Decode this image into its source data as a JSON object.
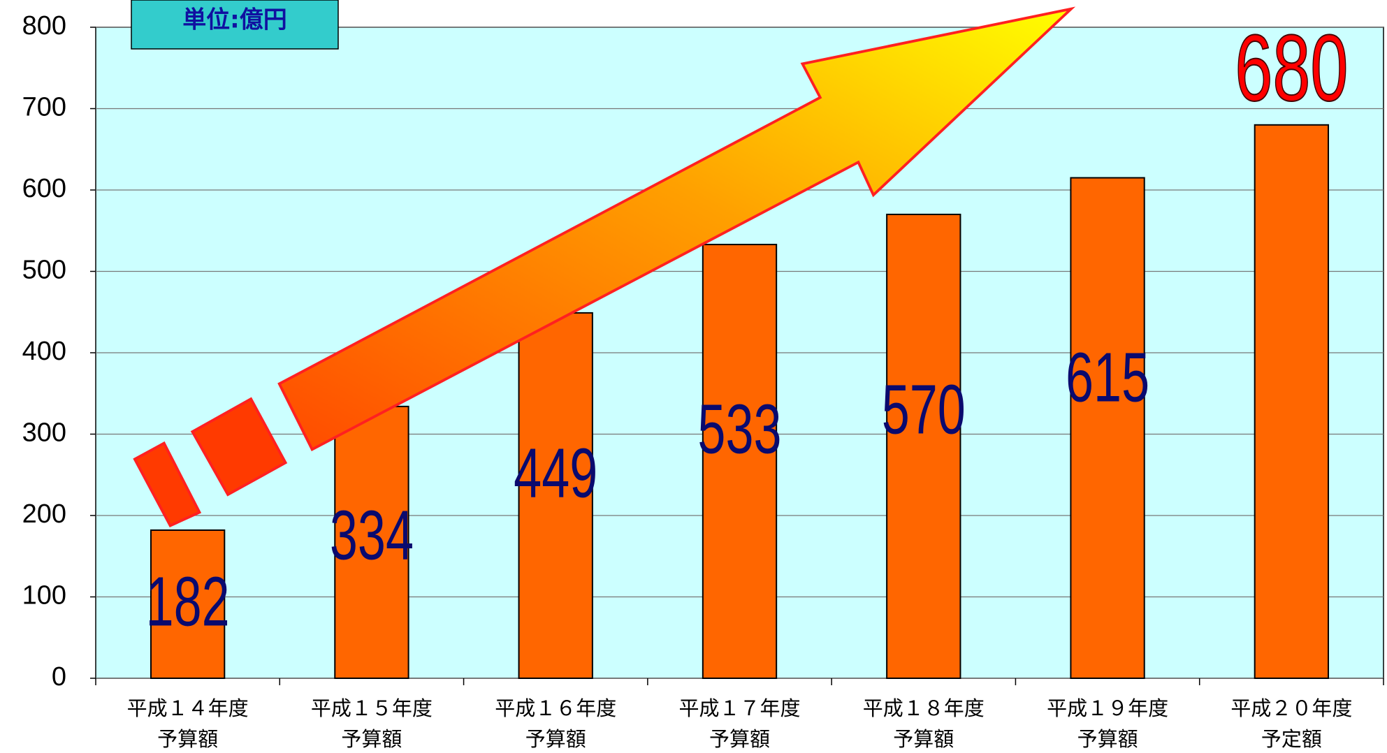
{
  "chart_data": {
    "type": "bar",
    "unit_label": "単位:億円",
    "categories": [
      [
        "平成１４年度",
        "予算額"
      ],
      [
        "平成１５年度",
        "予算額"
      ],
      [
        "平成１６年度",
        "予算額"
      ],
      [
        "平成１７年度",
        "予算額"
      ],
      [
        "平成１８年度",
        "予算額"
      ],
      [
        "平成１９年度",
        "予算額"
      ],
      [
        "平成２０年度",
        "予定額"
      ]
    ],
    "values": [
      182,
      334,
      449,
      533,
      570,
      615,
      680
    ],
    "color": "#ff6600",
    "ylim": [
      0,
      800
    ],
    "yticks": [
      0,
      100,
      200,
      300,
      400,
      500,
      600,
      700,
      800
    ],
    "grid": true
  }
}
